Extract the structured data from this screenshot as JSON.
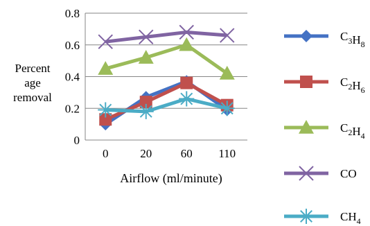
{
  "chart_data": {
    "type": "line",
    "ylabel": [
      "Percent",
      "age",
      "removal"
    ],
    "xlabel": "Airflow (ml/minute)",
    "categories": [
      "0",
      "20",
      "60",
      "110"
    ],
    "ylim": [
      0,
      0.8
    ],
    "yticks": [
      0,
      0.2,
      0.4,
      0.6,
      0.8
    ],
    "ytick_labels": [
      "0",
      "0.2",
      "0.4",
      "0.6",
      "0.8"
    ],
    "grid": "horizontal",
    "legend_position": "right",
    "series": [
      {
        "name": "C3H8",
        "label_base": "C",
        "label_parts": [
          [
            "C",
            "3"
          ],
          [
            "H",
            "8"
          ]
        ],
        "color": "#4472C4",
        "marker": "diamond",
        "values": [
          0.1,
          0.27,
          0.37,
          0.19
        ]
      },
      {
        "name": "C2H6",
        "label_parts": [
          [
            "C",
            "2"
          ],
          [
            "H",
            "6"
          ]
        ],
        "color": "#C0504D",
        "marker": "square",
        "values": [
          0.13,
          0.24,
          0.36,
          0.22
        ]
      },
      {
        "name": "C2H4",
        "label_parts": [
          [
            "C",
            "2"
          ],
          [
            "H",
            "4"
          ]
        ],
        "color": "#9BBB59",
        "marker": "triangle",
        "values": [
          0.45,
          0.52,
          0.6,
          0.42
        ]
      },
      {
        "name": "CO",
        "label_parts": [
          [
            "CO",
            ""
          ]
        ],
        "color": "#8064A2",
        "marker": "x",
        "values": [
          0.62,
          0.65,
          0.68,
          0.66
        ]
      },
      {
        "name": "CH4",
        "label_parts": [
          [
            "CH",
            "4"
          ]
        ],
        "color": "#4BACC6",
        "marker": "star",
        "values": [
          0.19,
          0.18,
          0.26,
          0.2
        ]
      }
    ]
  }
}
